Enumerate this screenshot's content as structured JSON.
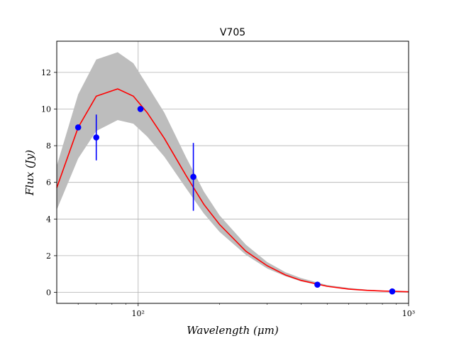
{
  "chart_data": {
    "type": "line",
    "title": "V705",
    "xlabel": "Wavelength (μm)",
    "ylabel": "Flux (Jy)",
    "xscale": "log",
    "xlim": [
      50,
      1000
    ],
    "ylim": [
      -0.6,
      13.7
    ],
    "grid": true,
    "x_ticks": [
      {
        "value": 100,
        "label": "10²"
      },
      {
        "value": 1000,
        "label": "10³"
      }
    ],
    "y_ticks": [
      0,
      2,
      4,
      6,
      8,
      10,
      12
    ],
    "colors": {
      "model": "#ff0000",
      "band": "#bdbdbd",
      "points": "#0000ff",
      "grid": "#b0b0b0"
    },
    "series": [
      {
        "kind": "band",
        "x": [
          50,
          60,
          70,
          84,
          96,
          108,
          125,
          150,
          175,
          200,
          250,
          300,
          350,
          400,
          500,
          600,
          700,
          800,
          900,
          1000
        ],
        "upper": [
          6.9,
          10.8,
          12.7,
          13.1,
          12.5,
          11.3,
          9.8,
          7.4,
          5.5,
          4.2,
          2.6,
          1.65,
          1.1,
          0.78,
          0.4,
          0.24,
          0.15,
          0.1,
          0.07,
          0.05
        ],
        "lower": [
          4.5,
          7.3,
          8.8,
          9.4,
          9.2,
          8.5,
          7.4,
          5.7,
          4.3,
          3.3,
          2.05,
          1.3,
          0.88,
          0.6,
          0.3,
          0.17,
          0.1,
          0.07,
          0.04,
          0.02
        ]
      },
      {
        "kind": "line",
        "x": [
          50,
          60,
          70,
          84,
          96,
          108,
          125,
          150,
          175,
          200,
          250,
          300,
          350,
          400,
          500,
          600,
          700,
          800,
          900,
          1000
        ],
        "y": [
          5.7,
          9.0,
          10.7,
          11.1,
          10.7,
          9.8,
          8.4,
          6.4,
          4.8,
          3.7,
          2.25,
          1.45,
          0.95,
          0.65,
          0.33,
          0.18,
          0.11,
          0.07,
          0.05,
          0.03
        ]
      },
      {
        "kind": "points",
        "x": [
          60,
          70,
          102,
          160,
          460,
          870
        ],
        "y": [
          9.0,
          8.45,
          10.0,
          6.3,
          0.42,
          0.05
        ],
        "err": [
          0,
          1.25,
          0,
          1.85,
          0,
          0
        ]
      }
    ]
  }
}
